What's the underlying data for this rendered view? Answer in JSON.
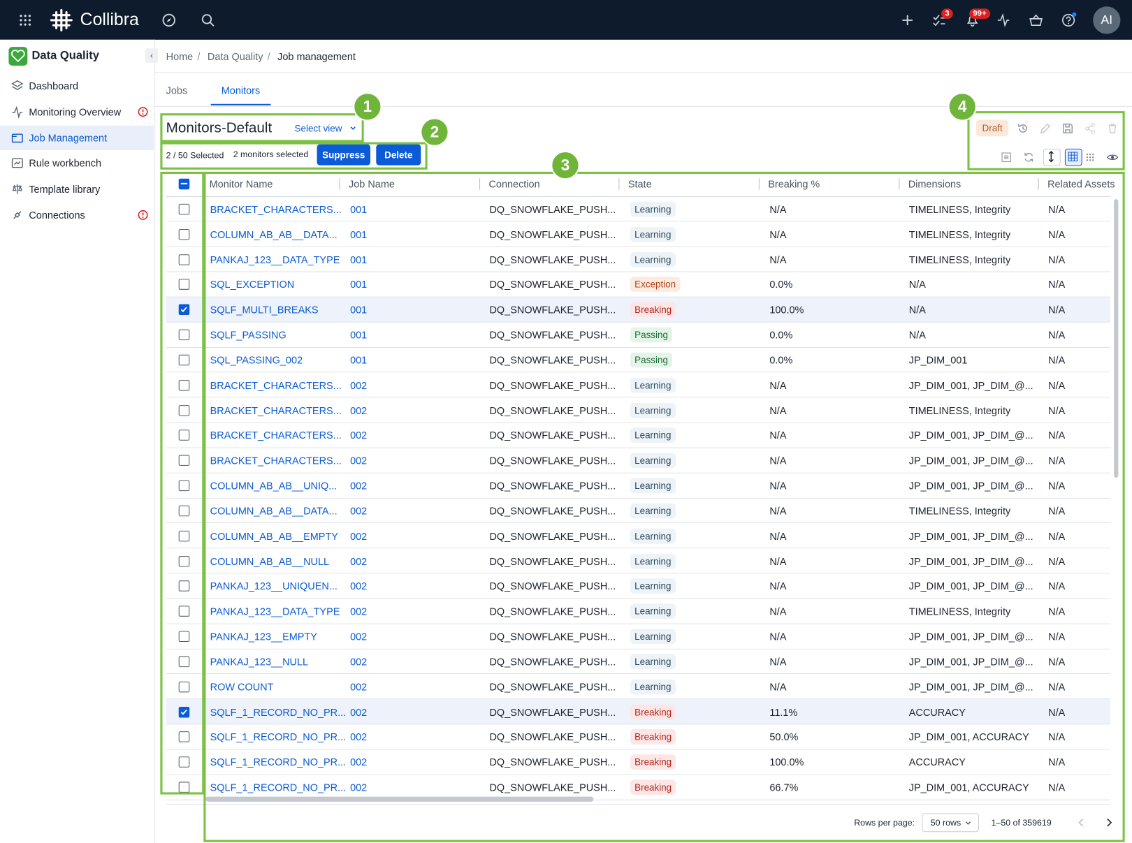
{
  "topbar": {
    "brand": "Collibra",
    "tasks_badge": "3",
    "notifications_badge": "99+",
    "avatar": "AI"
  },
  "sidebar": {
    "title": "Data Quality",
    "items": [
      {
        "label": "Dashboard",
        "active": false,
        "alert": false
      },
      {
        "label": "Monitoring Overview",
        "active": false,
        "alert": true
      },
      {
        "label": "Job Management",
        "active": true,
        "alert": false
      },
      {
        "label": "Rule workbench",
        "active": false,
        "alert": false
      },
      {
        "label": "Template library",
        "active": false,
        "alert": false
      },
      {
        "label": "Connections",
        "active": false,
        "alert": true
      }
    ]
  },
  "breadcrumb": [
    "Home",
    "Data Quality",
    "Job management"
  ],
  "tabs": [
    {
      "label": "Jobs",
      "active": false
    },
    {
      "label": "Monitors",
      "active": true
    }
  ],
  "view": {
    "title": "Monitors-Default",
    "select_view": "Select view",
    "draft": "Draft"
  },
  "selection": {
    "count": "2 / 50 Selected",
    "summary": "2 monitors selected",
    "suppress": "Suppress",
    "delete": "Delete"
  },
  "annotations": [
    "1",
    "2",
    "3",
    "4"
  ],
  "state_styles": {
    "Learning": {
      "bg": "#eef3f7",
      "color": "#2b4a62"
    },
    "Exception": {
      "bg": "#fcebe1",
      "color": "#b4441b"
    },
    "Breaking": {
      "bg": "#fce6e6",
      "color": "#b3261e"
    },
    "Passing": {
      "bg": "#e5f4e9",
      "color": "#1d6b38"
    }
  },
  "table": {
    "columns": [
      "Monitor Name",
      "Job Name",
      "Connection",
      "State",
      "Breaking %",
      "Dimensions",
      "Related Assets"
    ],
    "rows": [
      {
        "monitor": "BRACKET_CHARACTERS...",
        "job": "001",
        "connection": "DQ_SNOWFLAKE_PUSH...",
        "state": "Learning",
        "breaking": "N/A",
        "dimensions": "TIMELINESS, Integrity",
        "related": "N/A",
        "selected": false
      },
      {
        "monitor": "COLUMN_AB_AB__DATA...",
        "job": "001",
        "connection": "DQ_SNOWFLAKE_PUSH...",
        "state": "Learning",
        "breaking": "N/A",
        "dimensions": "TIMELINESS, Integrity",
        "related": "N/A",
        "selected": false
      },
      {
        "monitor": "PANKAJ_123__DATA_TYPE",
        "job": "001",
        "connection": "DQ_SNOWFLAKE_PUSH...",
        "state": "Learning",
        "breaking": "N/A",
        "dimensions": "TIMELINESS, Integrity",
        "related": "N/A",
        "selected": false
      },
      {
        "monitor": "SQL_EXCEPTION",
        "job": "001",
        "connection": "DQ_SNOWFLAKE_PUSH...",
        "state": "Exception",
        "breaking": "0.0%",
        "dimensions": "N/A",
        "related": "N/A",
        "selected": false
      },
      {
        "monitor": "SQLF_MULTI_BREAKS",
        "job": "001",
        "connection": "DQ_SNOWFLAKE_PUSH...",
        "state": "Breaking",
        "breaking": "100.0%",
        "dimensions": "N/A",
        "related": "N/A",
        "selected": true
      },
      {
        "monitor": "SQLF_PASSING",
        "job": "001",
        "connection": "DQ_SNOWFLAKE_PUSH...",
        "state": "Passing",
        "breaking": "0.0%",
        "dimensions": "N/A",
        "related": "N/A",
        "selected": false
      },
      {
        "monitor": "SQL_PASSING_002",
        "job": "001",
        "connection": "DQ_SNOWFLAKE_PUSH...",
        "state": "Passing",
        "breaking": "0.0%",
        "dimensions": "JP_DIM_001",
        "related": "N/A",
        "selected": false
      },
      {
        "monitor": "BRACKET_CHARACTERS...",
        "job": "002",
        "connection": "DQ_SNOWFLAKE_PUSH...",
        "state": "Learning",
        "breaking": "N/A",
        "dimensions": "JP_DIM_001, JP_DIM_@...",
        "related": "N/A",
        "selected": false
      },
      {
        "monitor": "BRACKET_CHARACTERS...",
        "job": "002",
        "connection": "DQ_SNOWFLAKE_PUSH...",
        "state": "Learning",
        "breaking": "N/A",
        "dimensions": "TIMELINESS, Integrity",
        "related": "N/A",
        "selected": false
      },
      {
        "monitor": "BRACKET_CHARACTERS...",
        "job": "002",
        "connection": "DQ_SNOWFLAKE_PUSH...",
        "state": "Learning",
        "breaking": "N/A",
        "dimensions": "JP_DIM_001, JP_DIM_@...",
        "related": "N/A",
        "selected": false
      },
      {
        "monitor": "BRACKET_CHARACTERS...",
        "job": "002",
        "connection": "DQ_SNOWFLAKE_PUSH...",
        "state": "Learning",
        "breaking": "N/A",
        "dimensions": "JP_DIM_001, JP_DIM_@...",
        "related": "N/A",
        "selected": false
      },
      {
        "monitor": "COLUMN_AB_AB__UNIQ...",
        "job": "002",
        "connection": "DQ_SNOWFLAKE_PUSH...",
        "state": "Learning",
        "breaking": "N/A",
        "dimensions": "JP_DIM_001, JP_DIM_@...",
        "related": "N/A",
        "selected": false
      },
      {
        "monitor": "COLUMN_AB_AB__DATA...",
        "job": "002",
        "connection": "DQ_SNOWFLAKE_PUSH...",
        "state": "Learning",
        "breaking": "N/A",
        "dimensions": "TIMELINESS, Integrity",
        "related": "N/A",
        "selected": false
      },
      {
        "monitor": "COLUMN_AB_AB__EMPTY",
        "job": "002",
        "connection": "DQ_SNOWFLAKE_PUSH...",
        "state": "Learning",
        "breaking": "N/A",
        "dimensions": "JP_DIM_001, JP_DIM_@...",
        "related": "N/A",
        "selected": false
      },
      {
        "monitor": "COLUMN_AB_AB__NULL",
        "job": "002",
        "connection": "DQ_SNOWFLAKE_PUSH...",
        "state": "Learning",
        "breaking": "N/A",
        "dimensions": "JP_DIM_001, JP_DIM_@...",
        "related": "N/A",
        "selected": false
      },
      {
        "monitor": "PANKAJ_123__UNIQUEN...",
        "job": "002",
        "connection": "DQ_SNOWFLAKE_PUSH...",
        "state": "Learning",
        "breaking": "N/A",
        "dimensions": "JP_DIM_001, JP_DIM_@...",
        "related": "N/A",
        "selected": false
      },
      {
        "monitor": "PANKAJ_123__DATA_TYPE",
        "job": "002",
        "connection": "DQ_SNOWFLAKE_PUSH...",
        "state": "Learning",
        "breaking": "N/A",
        "dimensions": "TIMELINESS, Integrity",
        "related": "N/A",
        "selected": false
      },
      {
        "monitor": "PANKAJ_123__EMPTY",
        "job": "002",
        "connection": "DQ_SNOWFLAKE_PUSH...",
        "state": "Learning",
        "breaking": "N/A",
        "dimensions": "JP_DIM_001, JP_DIM_@...",
        "related": "N/A",
        "selected": false
      },
      {
        "monitor": "PANKAJ_123__NULL",
        "job": "002",
        "connection": "DQ_SNOWFLAKE_PUSH...",
        "state": "Learning",
        "breaking": "N/A",
        "dimensions": "JP_DIM_001, JP_DIM_@...",
        "related": "N/A",
        "selected": false
      },
      {
        "monitor": "ROW COUNT",
        "job": "002",
        "connection": "DQ_SNOWFLAKE_PUSH...",
        "state": "Learning",
        "breaking": "N/A",
        "dimensions": "JP_DIM_001, JP_DIM_@...",
        "related": "N/A",
        "selected": false
      },
      {
        "monitor": "SQLF_1_RECORD_NO_PR...",
        "job": "002",
        "connection": "DQ_SNOWFLAKE_PUSH...",
        "state": "Breaking",
        "breaking": "11.1%",
        "dimensions": "ACCURACY",
        "related": "N/A",
        "selected": true
      },
      {
        "monitor": "SQLF_1_RECORD_NO_PR...",
        "job": "002",
        "connection": "DQ_SNOWFLAKE_PUSH...",
        "state": "Breaking",
        "breaking": "50.0%",
        "dimensions": "JP_DIM_001, ACCURACY",
        "related": "N/A",
        "selected": false
      },
      {
        "monitor": "SQLF_1_RECORD_NO_PR...",
        "job": "002",
        "connection": "DQ_SNOWFLAKE_PUSH...",
        "state": "Breaking",
        "breaking": "100.0%",
        "dimensions": "ACCURACY",
        "related": "N/A",
        "selected": false
      },
      {
        "monitor": "SQLF_1_RECORD_NO_PR...",
        "job": "002",
        "connection": "DQ_SNOWFLAKE_PUSH...",
        "state": "Breaking",
        "breaking": "66.7%",
        "dimensions": "JP_DIM_001, ACCURACY",
        "related": "N/A",
        "selected": false
      }
    ]
  },
  "footer": {
    "rows_per_page_label": "Rows per page:",
    "rows_per_page": "50 rows",
    "range": "1–50 of 359619"
  }
}
